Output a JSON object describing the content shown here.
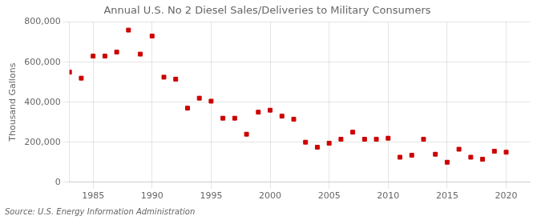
{
  "chart_data": {
    "type": "scatter",
    "title": "Annual U.S. No 2 Diesel Sales/Deliveries to Military Consumers",
    "ylabel": "Thousand Gallons",
    "annotation": "Source: U.S. Energy Information Administration",
    "x": [
      1983,
      1984,
      1985,
      1986,
      1987,
      1988,
      1989,
      1990,
      1991,
      1992,
      1993,
      1994,
      1995,
      1996,
      1997,
      1998,
      1999,
      2000,
      2001,
      2002,
      2003,
      2004,
      2005,
      2006,
      2007,
      2008,
      2009,
      2010,
      2011,
      2012,
      2013,
      2014,
      2015,
      2016,
      2017,
      2018,
      2019,
      2020
    ],
    "values": [
      550000,
      520000,
      630000,
      630000,
      650000,
      760000,
      640000,
      730000,
      525000,
      515000,
      370000,
      420000,
      405000,
      320000,
      320000,
      240000,
      350000,
      360000,
      330000,
      315000,
      200000,
      175000,
      195000,
      215000,
      250000,
      215000,
      215000,
      220000,
      125000,
      135000,
      215000,
      140000,
      100000,
      165000,
      125000,
      115000,
      155000,
      150000
    ],
    "color": "#cc0000",
    "marker": "square",
    "xlim": [
      1983,
      2022
    ],
    "xticks": [
      1985,
      1990,
      1995,
      2000,
      2005,
      2010,
      2015,
      2020
    ],
    "ylim": [
      0,
      800000
    ],
    "yticks": [
      0,
      {
        "value": 200000,
        "label": "200,000"
      },
      {
        "value": 400000,
        "label": "400,000"
      },
      {
        "value": 600000,
        "label": "600,000"
      },
      {
        "value": 800000,
        "label": "800,000"
      }
    ],
    "grid": true
  }
}
